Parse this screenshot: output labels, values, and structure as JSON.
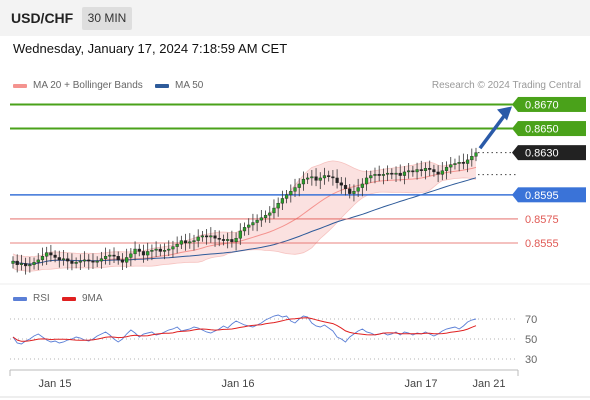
{
  "header": {
    "symbol": "USD/CHF",
    "timeframe": "30 MIN"
  },
  "datetime": "Wednesday, January 17, 2024 7:18:59 AM CET",
  "legend": {
    "ma20": {
      "label": "MA 20 + Bollinger Bands",
      "color": "#f4938f"
    },
    "ma50": {
      "label": "MA 50",
      "color": "#2e5b9a"
    },
    "rsi": {
      "label": "RSI",
      "color": "#5b7fd6"
    },
    "ma9": {
      "label": "9MA",
      "color": "#e02020"
    }
  },
  "credit": "Research © 2024 Trading Central",
  "chart_data": [
    {
      "type": "candlestick",
      "ylim": [
        0.8516,
        0.8682
      ],
      "price_levels": [
        {
          "value": 0.867,
          "label": "0.8670",
          "role": "target",
          "color": "#4aa21a"
        },
        {
          "value": 0.865,
          "label": "0.8650",
          "role": "target",
          "color": "#4aa21a"
        },
        {
          "value": 0.863,
          "label": "0.8630",
          "role": "last price",
          "color": "#222222"
        },
        {
          "value": 0.8595,
          "label": "0.8595",
          "role": "pivot",
          "color": "#3a73d8"
        },
        {
          "value": 0.8575,
          "label": "0.8575",
          "role": "support",
          "color": "#e05a55"
        },
        {
          "value": 0.8555,
          "label": "0.8555",
          "role": "support",
          "color": "#e05a55"
        }
      ],
      "x_ticks": [
        "Jan 15",
        "Jan 16",
        "Jan 17",
        "Jan 21"
      ],
      "close": [
        0.854,
        0.8537,
        0.8538,
        0.8536,
        0.8537,
        0.8539,
        0.8541,
        0.8544,
        0.8547,
        0.8545,
        0.8543,
        0.8541,
        0.8542,
        0.854,
        0.8538,
        0.8539,
        0.854,
        0.8541,
        0.854,
        0.8539,
        0.854,
        0.8542,
        0.8544,
        0.8545,
        0.8544,
        0.8541,
        0.8539,
        0.8543,
        0.8546,
        0.855,
        0.8548,
        0.8545,
        0.8548,
        0.8549,
        0.855,
        0.8548,
        0.8549,
        0.855,
        0.8552,
        0.8554,
        0.8557,
        0.8555,
        0.8556,
        0.8557,
        0.856,
        0.8561,
        0.856,
        0.8561,
        0.8559,
        0.8558,
        0.8557,
        0.8558,
        0.8556,
        0.8559,
        0.8565,
        0.8568,
        0.857,
        0.8572,
        0.8574,
        0.8576,
        0.8578,
        0.858,
        0.8584,
        0.8588,
        0.8592,
        0.8595,
        0.8598,
        0.8601,
        0.8604,
        0.8608,
        0.8609,
        0.861,
        0.8607,
        0.8609,
        0.8611,
        0.861,
        0.8609,
        0.8605,
        0.8603,
        0.86,
        0.8596,
        0.8598,
        0.8601,
        0.8604,
        0.8609,
        0.8611,
        0.8612,
        0.8611,
        0.8612,
        0.8613,
        0.8612,
        0.8613,
        0.8611,
        0.8614,
        0.8615,
        0.8614,
        0.8616,
        0.8615,
        0.8617,
        0.8616,
        0.8614,
        0.8612,
        0.8615,
        0.8618,
        0.862,
        0.8621,
        0.8622,
        0.8621,
        0.8624,
        0.8627,
        0.863
      ]
    },
    {
      "type": "line",
      "name": "RSI",
      "ylim": [
        20,
        80
      ],
      "y_ticks": [
        70,
        50,
        30
      ],
      "values": [
        52,
        46,
        45,
        48,
        50,
        53,
        55,
        52,
        49,
        47,
        48,
        46,
        47,
        49,
        50,
        52,
        51,
        49,
        48,
        50,
        53,
        55,
        57,
        54,
        50,
        47,
        50,
        55,
        59,
        56,
        52,
        55,
        56,
        57,
        54,
        55,
        57,
        59,
        60,
        62,
        58,
        59,
        60,
        62,
        61,
        59,
        57,
        56,
        58,
        60,
        63,
        61,
        65,
        68,
        66,
        64,
        63,
        62,
        64,
        66,
        69,
        71,
        73,
        74,
        72,
        73,
        68,
        66,
        70,
        73,
        72,
        66,
        63,
        62,
        64,
        61,
        58,
        52,
        50,
        47,
        52,
        55,
        58,
        60,
        57,
        56,
        54,
        55,
        56,
        54,
        55,
        57,
        54,
        57,
        56,
        54,
        56,
        55,
        57,
        55,
        53,
        55,
        58,
        60,
        61,
        62,
        60,
        63,
        67,
        69,
        70
      ]
    }
  ]
}
